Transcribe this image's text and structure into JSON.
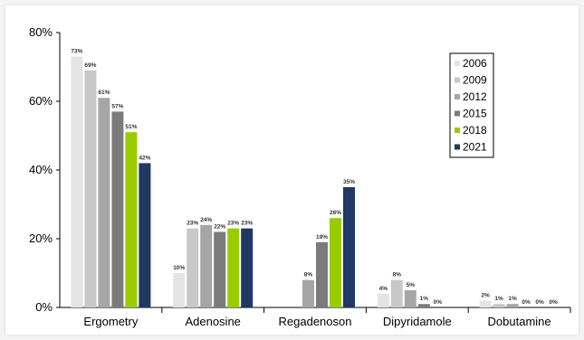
{
  "chart_data": {
    "type": "bar",
    "categories": [
      "Ergometry",
      "Adenosine",
      "Regadenoson",
      "Dipyridamole",
      "Dobutamine"
    ],
    "series": [
      {
        "name": "2006",
        "color": "#e4e4e4",
        "values": [
          73,
          10,
          null,
          4,
          2
        ],
        "labels": [
          "73%",
          "10%",
          "",
          "4%",
          "2%"
        ]
      },
      {
        "name": "2009",
        "color": "#c8c8c8",
        "values": [
          69,
          23,
          null,
          8,
          1
        ],
        "labels": [
          "69%",
          "23%",
          "",
          "8%",
          "1%"
        ]
      },
      {
        "name": "2012",
        "color": "#a6a6a6",
        "values": [
          61,
          24,
          8,
          5,
          1
        ],
        "labels": [
          "61%",
          "24%",
          "8%",
          "5%",
          "1%"
        ]
      },
      {
        "name": "2015",
        "color": "#7b7b7b",
        "values": [
          57,
          22,
          19,
          1,
          0
        ],
        "labels": [
          "57%",
          "22%",
          "19%",
          "1%",
          "0%"
        ]
      },
      {
        "name": "2018",
        "color": "#99cc00",
        "values": [
          51,
          23,
          26,
          0,
          0
        ],
        "labels": [
          "51%",
          "23%",
          "26%",
          "0%",
          "0%"
        ]
      },
      {
        "name": "2021",
        "color": "#1f3864",
        "values": [
          42,
          23,
          35,
          null,
          0
        ],
        "labels": [
          "42%",
          "23%",
          "35%",
          "",
          "0%"
        ]
      }
    ],
    "yticks": [
      "0%",
      "20%",
      "40%",
      "60%",
      "80%"
    ],
    "ylim": [
      0,
      80
    ],
    "legend_position": "top-right",
    "grid": false
  }
}
